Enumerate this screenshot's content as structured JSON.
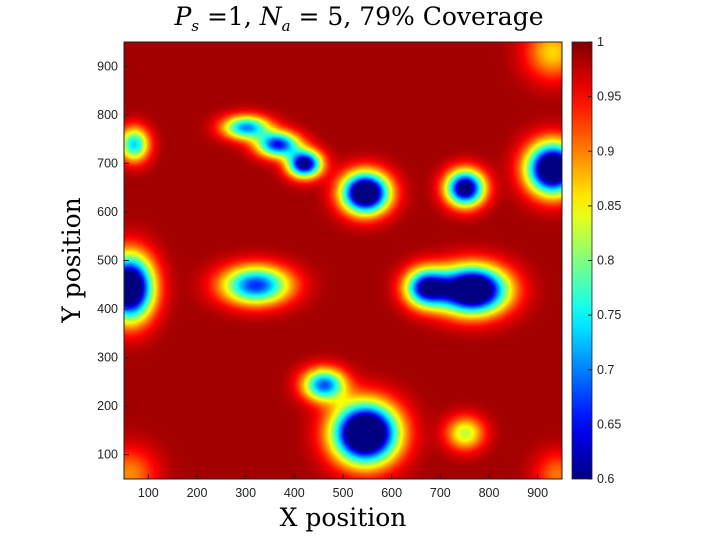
{
  "chart_data": {
    "type": "heatmap",
    "title_parts": {
      "p": "P",
      "p_sub": "s",
      "p_val": "=1,",
      "n": "N",
      "n_sub": "a",
      "n_val": "= 5,",
      "tail": "79% Coverage"
    },
    "xlabel": "X position",
    "ylabel": "Y position",
    "xlim": [
      50,
      950
    ],
    "ylim": [
      50,
      950
    ],
    "xticks": [
      100,
      200,
      300,
      400,
      500,
      600,
      700,
      800,
      900
    ],
    "yticks": [
      100,
      200,
      300,
      400,
      500,
      600,
      700,
      800,
      900
    ],
    "colorbar": {
      "min": 0.6,
      "max": 1,
      "ticks": [
        0.6,
        0.65,
        0.7,
        0.75,
        0.8,
        0.85,
        0.9,
        0.95,
        1
      ],
      "colormap": "jet"
    },
    "base_value": 0.985,
    "low_coverage_regions": [
      {
        "x": 420,
        "y": 700,
        "rx": 40,
        "ry": 32,
        "depth": 0.4
      },
      {
        "x": 545,
        "y": 640,
        "rx": 55,
        "ry": 48,
        "depth": 0.5
      },
      {
        "x": 300,
        "y": 775,
        "rx": 55,
        "ry": 28,
        "depth": 0.28
      },
      {
        "x": 365,
        "y": 740,
        "rx": 50,
        "ry": 30,
        "depth": 0.33
      },
      {
        "x": 750,
        "y": 650,
        "rx": 45,
        "ry": 42,
        "depth": 0.42
      },
      {
        "x": 930,
        "y": 690,
        "rx": 60,
        "ry": 60,
        "depth": 0.5
      },
      {
        "x": 70,
        "y": 740,
        "rx": 35,
        "ry": 40,
        "depth": 0.25
      },
      {
        "x": 60,
        "y": 445,
        "rx": 55,
        "ry": 75,
        "depth": 0.5
      },
      {
        "x": 320,
        "y": 450,
        "rx": 80,
        "ry": 45,
        "depth": 0.32
      },
      {
        "x": 765,
        "y": 440,
        "rx": 80,
        "ry": 55,
        "depth": 0.52
      },
      {
        "x": 670,
        "y": 445,
        "rx": 50,
        "ry": 45,
        "depth": 0.35
      },
      {
        "x": 545,
        "y": 145,
        "rx": 75,
        "ry": 70,
        "depth": 0.55
      },
      {
        "x": 460,
        "y": 245,
        "rx": 50,
        "ry": 38,
        "depth": 0.3
      },
      {
        "x": 750,
        "y": 145,
        "rx": 45,
        "ry": 40,
        "depth": 0.16
      }
    ],
    "high_value_regions": [
      {
        "x": 930,
        "y": 930,
        "rx": 60,
        "ry": 60,
        "lift": 0.12
      },
      {
        "x": 60,
        "y": 60,
        "rx": 60,
        "ry": 60,
        "lift": 0.09
      },
      {
        "x": 940,
        "y": 60,
        "rx": 50,
        "ry": 50,
        "lift": 0.08
      }
    ]
  }
}
